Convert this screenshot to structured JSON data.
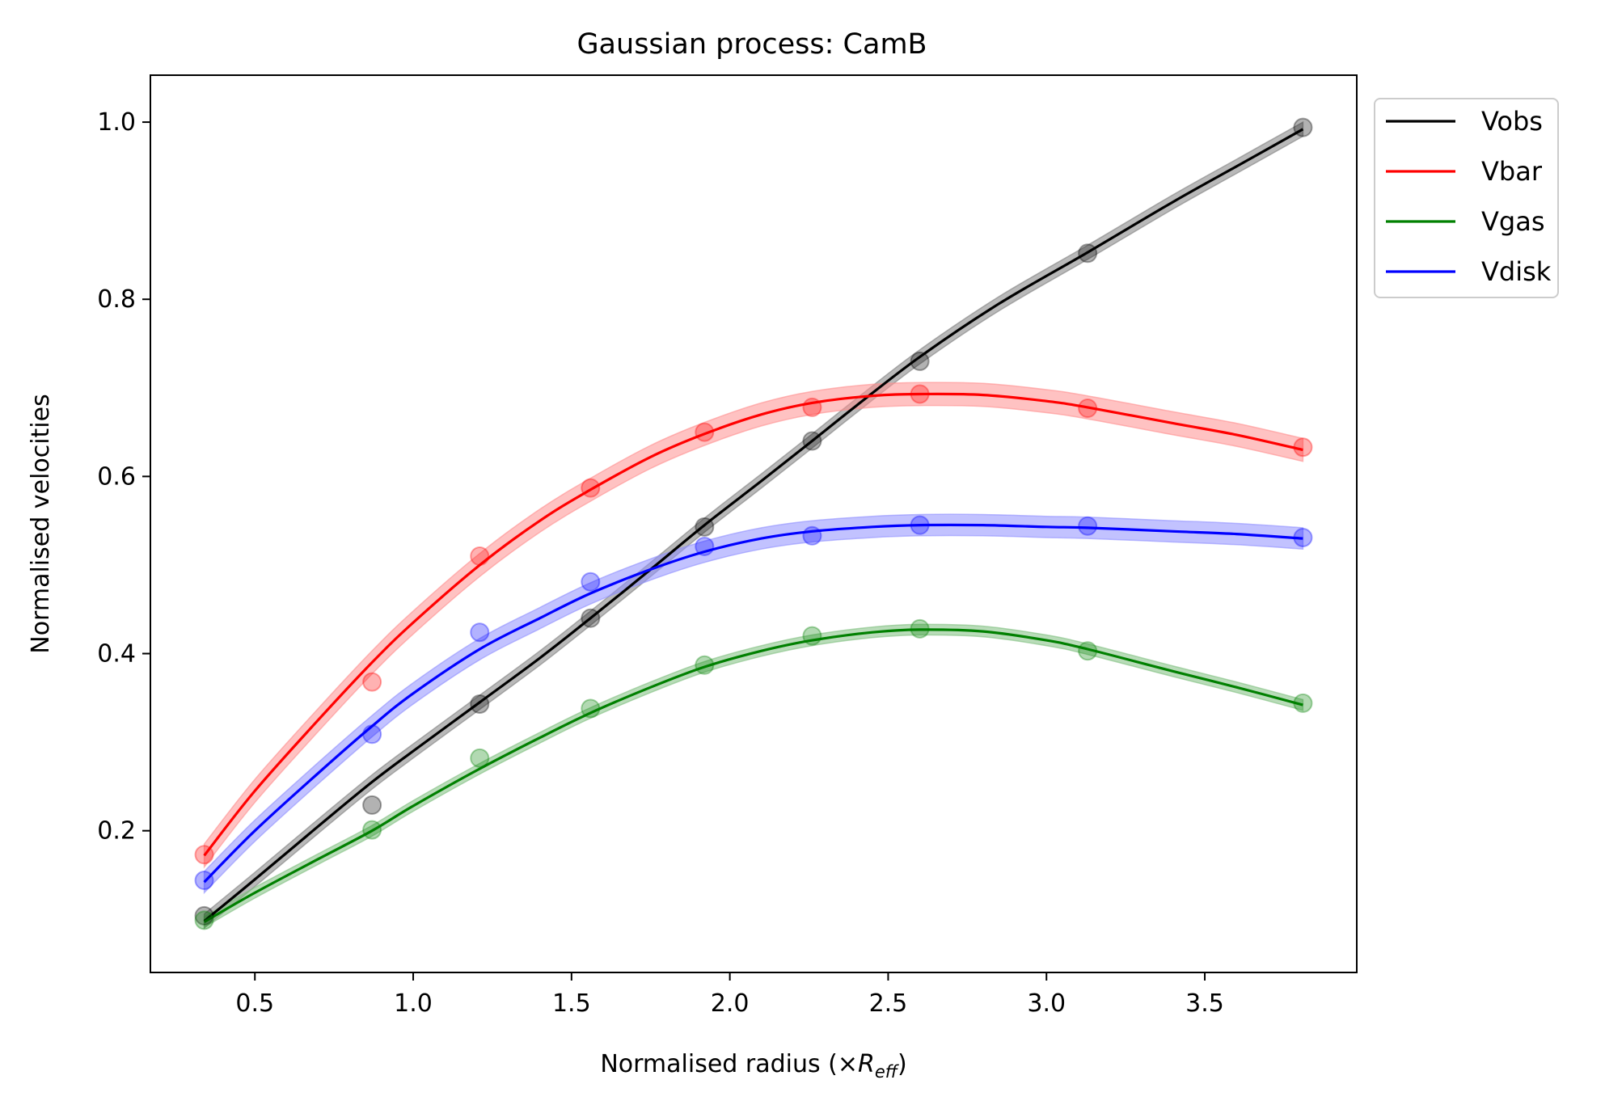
{
  "chart_data": {
    "type": "line",
    "title": "Gaussian process: CamB",
    "xlabel_prefix": "Normalised radius (×",
    "xlabel_symbol": "R",
    "xlabel_subscript": "eff",
    "xlabel_suffix": ")",
    "ylabel": "Normalised velocities",
    "xlim": [
      0.17,
      3.98
    ],
    "ylim": [
      0.04,
      1.053
    ],
    "xticks": [
      0.5,
      1.0,
      1.5,
      2.0,
      2.5,
      3.0,
      3.5
    ],
    "xtick_labels": [
      "0.5",
      "1.0",
      "1.5",
      "2.0",
      "2.5",
      "3.0",
      "3.5"
    ],
    "yticks": [
      0.2,
      0.4,
      0.6,
      0.8,
      1.0
    ],
    "ytick_labels": [
      "0.2",
      "0.4",
      "0.6",
      "0.8",
      "1.0"
    ],
    "grid": false,
    "legend_position": "outside-top-right",
    "x": [
      0.34,
      0.87,
      1.21,
      1.56,
      1.92,
      2.26,
      2.6,
      3.13,
      3.81
    ],
    "series": [
      {
        "name": "Vobs",
        "color": "#000000",
        "band_color": "#808080",
        "band_halfwidth": 0.008,
        "points": [
          0.104,
          0.229,
          0.343,
          0.44,
          0.543,
          0.64,
          0.73,
          0.852,
          0.994
        ],
        "curve_x": [
          0.34,
          0.5,
          0.7,
          0.87,
          1.0,
          1.21,
          1.4,
          1.56,
          1.75,
          1.92,
          2.1,
          2.26,
          2.4,
          2.6,
          2.85,
          3.13,
          3.4,
          3.6,
          3.81
        ],
        "curve_y": [
          0.098,
          0.145,
          0.205,
          0.255,
          0.29,
          0.345,
          0.395,
          0.44,
          0.495,
          0.545,
          0.595,
          0.64,
          0.68,
          0.735,
          0.795,
          0.853,
          0.91,
          0.95,
          0.992
        ]
      },
      {
        "name": "Vbar",
        "color": "#ff0000",
        "band_color": "#ff9090",
        "band_halfwidth": 0.013,
        "points": [
          0.173,
          0.368,
          0.51,
          0.587,
          0.65,
          0.678,
          0.693,
          0.677,
          0.633
        ],
        "curve_x": [
          0.34,
          0.5,
          0.7,
          0.87,
          1.0,
          1.21,
          1.4,
          1.56,
          1.75,
          1.92,
          2.1,
          2.26,
          2.45,
          2.6,
          2.8,
          3.0,
          3.13,
          3.4,
          3.6,
          3.81
        ],
        "curve_y": [
          0.172,
          0.245,
          0.325,
          0.39,
          0.435,
          0.5,
          0.55,
          0.585,
          0.622,
          0.648,
          0.67,
          0.683,
          0.691,
          0.693,
          0.692,
          0.685,
          0.678,
          0.66,
          0.647,
          0.63
        ]
      },
      {
        "name": "Vgas",
        "color": "#008000",
        "band_color": "#80c080",
        "band_halfwidth": 0.006,
        "points": [
          0.099,
          0.201,
          0.282,
          0.338,
          0.387,
          0.42,
          0.428,
          0.403,
          0.344
        ],
        "curve_x": [
          0.34,
          0.5,
          0.7,
          0.87,
          1.0,
          1.21,
          1.4,
          1.56,
          1.75,
          1.92,
          2.1,
          2.26,
          2.45,
          2.6,
          2.8,
          3.0,
          3.13,
          3.4,
          3.6,
          3.81
        ],
        "curve_y": [
          0.097,
          0.13,
          0.168,
          0.2,
          0.228,
          0.27,
          0.305,
          0.333,
          0.362,
          0.385,
          0.403,
          0.415,
          0.424,
          0.427,
          0.425,
          0.415,
          0.405,
          0.38,
          0.362,
          0.342
        ]
      },
      {
        "name": "Vdisk",
        "color": "#0000ff",
        "band_color": "#9090ff",
        "band_halfwidth": 0.012,
        "points": [
          0.144,
          0.309,
          0.424,
          0.481,
          0.521,
          0.533,
          0.545,
          0.544,
          0.531
        ],
        "curve_x": [
          0.34,
          0.5,
          0.7,
          0.87,
          1.0,
          1.21,
          1.4,
          1.56,
          1.75,
          1.92,
          2.1,
          2.26,
          2.45,
          2.6,
          2.8,
          3.0,
          3.13,
          3.4,
          3.6,
          3.81
        ],
        "curve_y": [
          0.142,
          0.2,
          0.265,
          0.318,
          0.355,
          0.405,
          0.44,
          0.468,
          0.495,
          0.515,
          0.53,
          0.538,
          0.543,
          0.545,
          0.545,
          0.543,
          0.542,
          0.538,
          0.535,
          0.53
        ]
      }
    ]
  }
}
